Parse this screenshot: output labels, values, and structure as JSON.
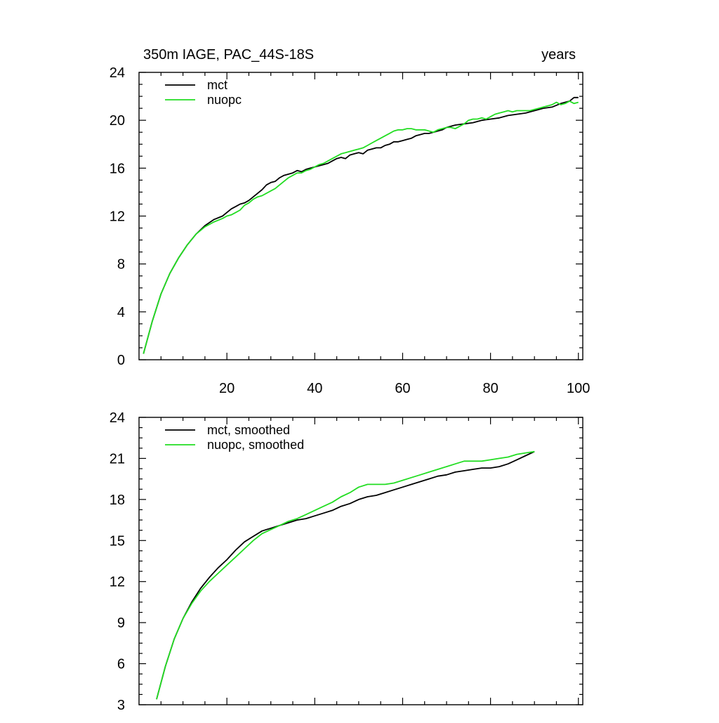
{
  "chart_data": [
    {
      "type": "line",
      "title": "350m IAGE, PAC_44S-18S",
      "right_title": "years",
      "xlim": [
        0,
        101
      ],
      "ylim": [
        0,
        24
      ],
      "x_ticks": [
        20,
        40,
        60,
        80,
        100
      ],
      "x_tick_labels": [
        "20",
        "40",
        "60",
        "80",
        "100"
      ],
      "y_ticks": [
        0,
        4,
        8,
        12,
        16,
        20,
        24
      ],
      "y_tick_labels": [
        "0",
        "4",
        "8",
        "12",
        "16",
        "20",
        "24"
      ],
      "legend_position": "top-left",
      "series": [
        {
          "name": "mct",
          "color": "#000000",
          "points": [
            [
              1,
              0.5
            ],
            [
              3,
              3.2
            ],
            [
              5,
              5.5
            ],
            [
              7,
              7.2
            ],
            [
              9,
              8.5
            ],
            [
              11,
              9.6
            ],
            [
              13,
              10.5
            ],
            [
              15,
              11.2
            ],
            [
              17,
              11.7
            ],
            [
              19,
              12.0
            ],
            [
              20,
              12.3
            ],
            [
              21,
              12.6
            ],
            [
              22,
              12.8
            ],
            [
              23,
              13.0
            ],
            [
              24,
              13.1
            ],
            [
              25,
              13.3
            ],
            [
              26,
              13.6
            ],
            [
              27,
              13.9
            ],
            [
              28,
              14.2
            ],
            [
              29,
              14.6
            ],
            [
              30,
              14.8
            ],
            [
              31,
              14.9
            ],
            [
              32,
              15.2
            ],
            [
              33,
              15.4
            ],
            [
              34,
              15.5
            ],
            [
              35,
              15.6
            ],
            [
              36,
              15.8
            ],
            [
              37,
              15.7
            ],
            [
              38,
              15.9
            ],
            [
              39,
              16.0
            ],
            [
              40,
              16.1
            ],
            [
              41,
              16.2
            ],
            [
              42,
              16.3
            ],
            [
              43,
              16.4
            ],
            [
              44,
              16.6
            ],
            [
              45,
              16.8
            ],
            [
              46,
              16.9
            ],
            [
              47,
              16.8
            ],
            [
              48,
              17.1
            ],
            [
              49,
              17.2
            ],
            [
              50,
              17.3
            ],
            [
              51,
              17.2
            ],
            [
              52,
              17.5
            ],
            [
              53,
              17.6
            ],
            [
              54,
              17.7
            ],
            [
              55,
              17.7
            ],
            [
              56,
              17.9
            ],
            [
              57,
              18.0
            ],
            [
              58,
              18.2
            ],
            [
              59,
              18.2
            ],
            [
              60,
              18.3
            ],
            [
              61,
              18.4
            ],
            [
              62,
              18.5
            ],
            [
              63,
              18.7
            ],
            [
              64,
              18.8
            ],
            [
              65,
              18.9
            ],
            [
              66,
              18.9
            ],
            [
              67,
              19.0
            ],
            [
              68,
              19.1
            ],
            [
              69,
              19.2
            ],
            [
              70,
              19.4
            ],
            [
              72,
              19.6
            ],
            [
              74,
              19.7
            ],
            [
              76,
              19.8
            ],
            [
              78,
              20.0
            ],
            [
              80,
              20.1
            ],
            [
              82,
              20.2
            ],
            [
              84,
              20.4
            ],
            [
              86,
              20.5
            ],
            [
              88,
              20.6
            ],
            [
              90,
              20.8
            ],
            [
              92,
              21.0
            ],
            [
              94,
              21.1
            ],
            [
              96,
              21.4
            ],
            [
              98,
              21.6
            ],
            [
              99,
              21.9
            ],
            [
              100,
              21.9
            ]
          ]
        },
        {
          "name": "nuopc",
          "color": "#22dd22",
          "points": [
            [
              1,
              0.5
            ],
            [
              3,
              3.2
            ],
            [
              5,
              5.5
            ],
            [
              7,
              7.2
            ],
            [
              9,
              8.5
            ],
            [
              11,
              9.6
            ],
            [
              13,
              10.5
            ],
            [
              15,
              11.1
            ],
            [
              17,
              11.5
            ],
            [
              19,
              11.8
            ],
            [
              20,
              12.0
            ],
            [
              21,
              12.1
            ],
            [
              22,
              12.3
            ],
            [
              23,
              12.5
            ],
            [
              24,
              12.9
            ],
            [
              25,
              13.1
            ],
            [
              26,
              13.4
            ],
            [
              27,
              13.6
            ],
            [
              28,
              13.7
            ],
            [
              29,
              13.9
            ],
            [
              30,
              14.1
            ],
            [
              31,
              14.3
            ],
            [
              32,
              14.6
            ],
            [
              33,
              14.9
            ],
            [
              34,
              15.2
            ],
            [
              35,
              15.4
            ],
            [
              36,
              15.6
            ],
            [
              37,
              15.6
            ],
            [
              38,
              15.8
            ],
            [
              39,
              15.9
            ],
            [
              40,
              16.1
            ],
            [
              41,
              16.3
            ],
            [
              42,
              16.4
            ],
            [
              43,
              16.6
            ],
            [
              44,
              16.8
            ],
            [
              45,
              17.0
            ],
            [
              46,
              17.2
            ],
            [
              47,
              17.3
            ],
            [
              48,
              17.4
            ],
            [
              49,
              17.5
            ],
            [
              50,
              17.6
            ],
            [
              51,
              17.7
            ],
            [
              52,
              17.9
            ],
            [
              53,
              18.1
            ],
            [
              54,
              18.3
            ],
            [
              55,
              18.5
            ],
            [
              56,
              18.7
            ],
            [
              57,
              18.9
            ],
            [
              58,
              19.1
            ],
            [
              59,
              19.2
            ],
            [
              60,
              19.2
            ],
            [
              61,
              19.3
            ],
            [
              62,
              19.3
            ],
            [
              63,
              19.2
            ],
            [
              64,
              19.2
            ],
            [
              65,
              19.2
            ],
            [
              66,
              19.1
            ],
            [
              67,
              19.0
            ],
            [
              68,
              19.2
            ],
            [
              69,
              19.3
            ],
            [
              70,
              19.4
            ],
            [
              71,
              19.4
            ],
            [
              72,
              19.3
            ],
            [
              73,
              19.5
            ],
            [
              74,
              19.7
            ],
            [
              75,
              20.0
            ],
            [
              76,
              20.1
            ],
            [
              77,
              20.1
            ],
            [
              78,
              20.2
            ],
            [
              79,
              20.1
            ],
            [
              80,
              20.3
            ],
            [
              81,
              20.5
            ],
            [
              82,
              20.6
            ],
            [
              83,
              20.7
            ],
            [
              84,
              20.8
            ],
            [
              85,
              20.7
            ],
            [
              86,
              20.8
            ],
            [
              87,
              20.8
            ],
            [
              88,
              20.8
            ],
            [
              89,
              20.8
            ],
            [
              90,
              20.9
            ],
            [
              91,
              21.0
            ],
            [
              92,
              21.1
            ],
            [
              93,
              21.2
            ],
            [
              94,
              21.3
            ],
            [
              95,
              21.5
            ],
            [
              96,
              21.3
            ],
            [
              97,
              21.4
            ],
            [
              98,
              21.6
            ],
            [
              99,
              21.4
            ],
            [
              100,
              21.5
            ]
          ]
        }
      ]
    },
    {
      "type": "line",
      "xlim": [
        0,
        101
      ],
      "ylim": [
        3,
        24
      ],
      "x_ticks": [
        20,
        40,
        60,
        80,
        100
      ],
      "y_ticks": [
        3,
        6,
        9,
        12,
        15,
        18,
        21,
        24
      ],
      "y_tick_labels": [
        "3",
        "6",
        "9",
        "12",
        "15",
        "18",
        "21",
        "24"
      ],
      "legend_position": "top-left",
      "series": [
        {
          "name": "mct, smoothed",
          "color": "#000000",
          "points": [
            [
              4,
              3.4
            ],
            [
              6,
              5.8
            ],
            [
              8,
              7.8
            ],
            [
              10,
              9.3
            ],
            [
              12,
              10.5
            ],
            [
              14,
              11.5
            ],
            [
              16,
              12.3
            ],
            [
              18,
              13.0
            ],
            [
              20,
              13.6
            ],
            [
              22,
              14.3
            ],
            [
              24,
              14.9
            ],
            [
              26,
              15.3
            ],
            [
              28,
              15.7
            ],
            [
              30,
              15.9
            ],
            [
              32,
              16.1
            ],
            [
              34,
              16.3
            ],
            [
              36,
              16.5
            ],
            [
              38,
              16.6
            ],
            [
              40,
              16.8
            ],
            [
              42,
              17.0
            ],
            [
              44,
              17.2
            ],
            [
              46,
              17.5
            ],
            [
              48,
              17.7
            ],
            [
              50,
              18.0
            ],
            [
              52,
              18.2
            ],
            [
              54,
              18.3
            ],
            [
              56,
              18.5
            ],
            [
              58,
              18.7
            ],
            [
              60,
              18.9
            ],
            [
              62,
              19.1
            ],
            [
              64,
              19.3
            ],
            [
              66,
              19.5
            ],
            [
              68,
              19.7
            ],
            [
              70,
              19.8
            ],
            [
              72,
              20.0
            ],
            [
              74,
              20.1
            ],
            [
              76,
              20.2
            ],
            [
              78,
              20.3
            ],
            [
              80,
              20.3
            ],
            [
              82,
              20.4
            ],
            [
              84,
              20.6
            ],
            [
              86,
              20.9
            ],
            [
              88,
              21.2
            ],
            [
              90,
              21.5
            ]
          ]
        },
        {
          "name": "nuopc, smoothed",
          "color": "#22dd22",
          "points": [
            [
              4,
              3.4
            ],
            [
              6,
              5.8
            ],
            [
              8,
              7.8
            ],
            [
              10,
              9.3
            ],
            [
              12,
              10.4
            ],
            [
              14,
              11.3
            ],
            [
              16,
              12.0
            ],
            [
              18,
              12.6
            ],
            [
              20,
              13.2
            ],
            [
              22,
              13.8
            ],
            [
              24,
              14.4
            ],
            [
              26,
              15.0
            ],
            [
              28,
              15.5
            ],
            [
              30,
              15.8
            ],
            [
              32,
              16.1
            ],
            [
              34,
              16.4
            ],
            [
              36,
              16.6
            ],
            [
              38,
              16.9
            ],
            [
              40,
              17.2
            ],
            [
              42,
              17.5
            ],
            [
              44,
              17.8
            ],
            [
              46,
              18.2
            ],
            [
              48,
              18.5
            ],
            [
              50,
              18.9
            ],
            [
              52,
              19.1
            ],
            [
              54,
              19.1
            ],
            [
              56,
              19.1
            ],
            [
              58,
              19.2
            ],
            [
              60,
              19.4
            ],
            [
              62,
              19.6
            ],
            [
              64,
              19.8
            ],
            [
              66,
              20.0
            ],
            [
              68,
              20.2
            ],
            [
              70,
              20.4
            ],
            [
              72,
              20.6
            ],
            [
              74,
              20.8
            ],
            [
              76,
              20.8
            ],
            [
              78,
              20.8
            ],
            [
              80,
              20.9
            ],
            [
              82,
              21.0
            ],
            [
              84,
              21.1
            ],
            [
              86,
              21.3
            ],
            [
              88,
              21.4
            ],
            [
              90,
              21.5
            ]
          ]
        }
      ]
    }
  ]
}
